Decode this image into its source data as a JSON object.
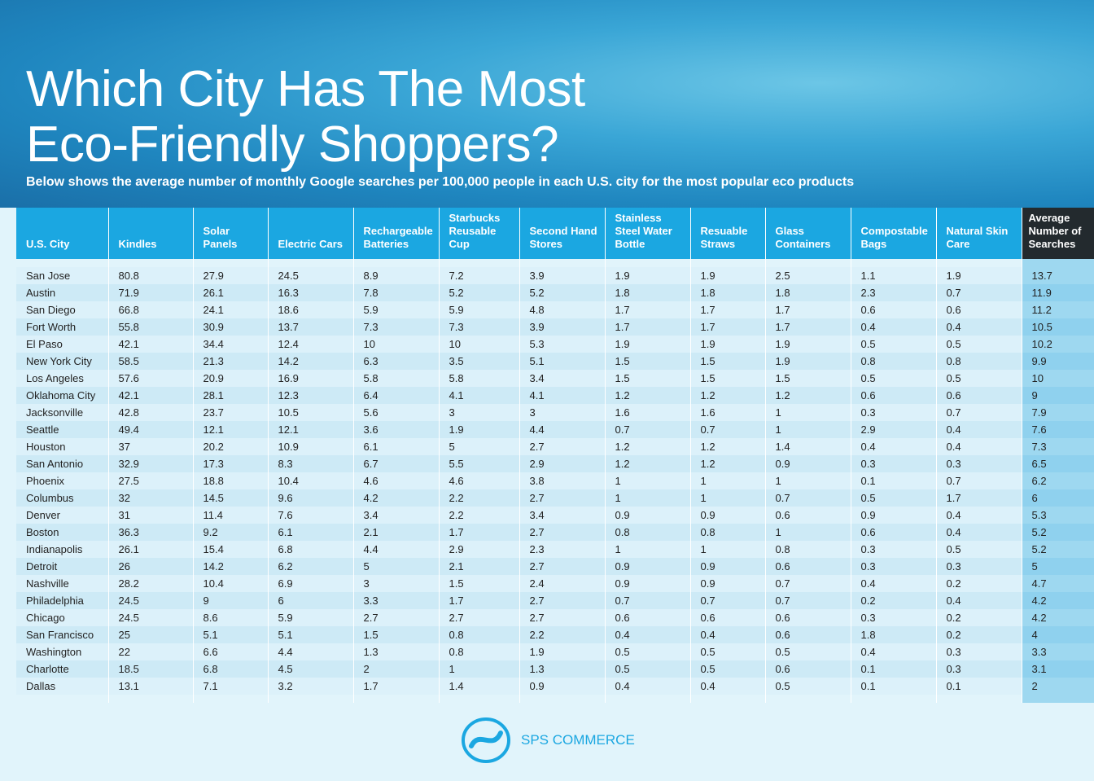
{
  "header": {
    "title_lines": [
      "Which City Has The Most",
      "Eco-Friendly Shoppers?"
    ],
    "subtitle": "Below shows the average number of monthly Google searches per 100,000 people in each U.S. city for the most popular eco products"
  },
  "table": {
    "columns": [
      "U.S. City",
      "Kindles",
      "Solar Panels",
      "Electric Cars",
      "Rechargeable Batteries",
      "Starbucks Reusable Cup",
      "Second Hand Stores",
      "Stainless Steel Water Bottle",
      "Resuable Straws",
      "Glass Containers",
      "Compostable Bags",
      "Natural Skin Care",
      "Average Number of Searches"
    ],
    "rows": [
      [
        "San Jose",
        80.8,
        27.9,
        24.5,
        8.9,
        7.2,
        3.9,
        1.9,
        1.9,
        2.5,
        1.1,
        1.9,
        13.7
      ],
      [
        "Austin",
        71.9,
        26.1,
        16.3,
        7.8,
        5.2,
        5.2,
        1.8,
        1.8,
        1.8,
        2.3,
        0.7,
        11.9
      ],
      [
        "San Diego",
        66.8,
        24.1,
        18.6,
        5.9,
        5.9,
        4.8,
        1.7,
        1.7,
        1.7,
        0.6,
        0.6,
        11.2
      ],
      [
        "Fort Worth",
        55.8,
        30.9,
        13.7,
        7.3,
        7.3,
        3.9,
        1.7,
        1.7,
        1.7,
        0.4,
        0.4,
        10.5
      ],
      [
        "El Paso",
        42.1,
        34.4,
        12.4,
        10,
        10,
        5.3,
        1.9,
        1.9,
        1.9,
        0.5,
        0.5,
        10.2
      ],
      [
        "New York City",
        58.5,
        21.3,
        14.2,
        6.3,
        3.5,
        5.1,
        1.5,
        1.5,
        1.9,
        0.8,
        0.8,
        9.9
      ],
      [
        "Los Angeles",
        57.6,
        20.9,
        16.9,
        5.8,
        5.8,
        3.4,
        1.5,
        1.5,
        1.5,
        0.5,
        0.5,
        10
      ],
      [
        "Oklahoma City",
        42.1,
        28.1,
        12.3,
        6.4,
        4.1,
        4.1,
        1.2,
        1.2,
        1.2,
        0.6,
        0.6,
        9
      ],
      [
        "Jacksonville",
        42.8,
        23.7,
        10.5,
        5.6,
        3,
        3,
        1.6,
        1.6,
        1,
        0.3,
        0.7,
        7.9
      ],
      [
        "Seattle",
        49.4,
        12.1,
        12.1,
        3.6,
        1.9,
        4.4,
        0.7,
        0.7,
        1,
        2.9,
        0.4,
        7.6
      ],
      [
        "Houston",
        37,
        20.2,
        10.9,
        6.1,
        5,
        2.7,
        1.2,
        1.2,
        1.4,
        0.4,
        0.4,
        7.3
      ],
      [
        "San Antonio",
        32.9,
        17.3,
        8.3,
        6.7,
        5.5,
        2.9,
        1.2,
        1.2,
        0.9,
        0.3,
        0.3,
        6.5
      ],
      [
        "Phoenix",
        27.5,
        18.8,
        10.4,
        4.6,
        4.6,
        3.8,
        1,
        1,
        1,
        0.1,
        0.7,
        6.2
      ],
      [
        "Columbus",
        32,
        14.5,
        9.6,
        4.2,
        2.2,
        2.7,
        1,
        1,
        0.7,
        0.5,
        1.7,
        6
      ],
      [
        "Denver",
        31,
        11.4,
        7.6,
        3.4,
        2.2,
        3.4,
        0.9,
        0.9,
        0.6,
        0.9,
        0.4,
        5.3
      ],
      [
        "Boston",
        36.3,
        9.2,
        6.1,
        2.1,
        1.7,
        2.7,
        0.8,
        0.8,
        1,
        0.6,
        0.4,
        5.2
      ],
      [
        "Indianapolis",
        26.1,
        15.4,
        6.8,
        4.4,
        2.9,
        2.3,
        1,
        1,
        0.8,
        0.3,
        0.5,
        5.2
      ],
      [
        "Detroit",
        26,
        14.2,
        6.2,
        5,
        2.1,
        2.7,
        0.9,
        0.9,
        0.6,
        0.3,
        0.3,
        5
      ],
      [
        "Nashville",
        28.2,
        10.4,
        6.9,
        3,
        1.5,
        2.4,
        0.9,
        0.9,
        0.7,
        0.4,
        0.2,
        4.7
      ],
      [
        "Philadelphia",
        24.5,
        9,
        6,
        3.3,
        1.7,
        2.7,
        0.7,
        0.7,
        0.7,
        0.2,
        0.4,
        4.2
      ],
      [
        "Chicago",
        24.5,
        8.6,
        5.9,
        2.7,
        2.7,
        2.7,
        0.6,
        0.6,
        0.6,
        0.3,
        0.2,
        4.2
      ],
      [
        "San Francisco",
        25,
        5.1,
        5.1,
        1.5,
        0.8,
        2.2,
        0.4,
        0.4,
        0.6,
        1.8,
        0.2,
        4
      ],
      [
        "Washington",
        22,
        6.6,
        4.4,
        1.3,
        0.8,
        1.9,
        0.5,
        0.5,
        0.5,
        0.4,
        0.3,
        3.3
      ],
      [
        "Charlotte",
        18.5,
        6.8,
        4.5,
        2,
        1,
        1.3,
        0.5,
        0.5,
        0.6,
        0.1,
        0.3,
        3.1
      ],
      [
        "Dallas",
        13.1,
        7.1,
        3.2,
        1.7,
        1.4,
        0.9,
        0.4,
        0.4,
        0.5,
        0.1,
        0.1,
        2
      ]
    ]
  },
  "footer": {
    "brand": "SPS COMMERCE"
  }
}
